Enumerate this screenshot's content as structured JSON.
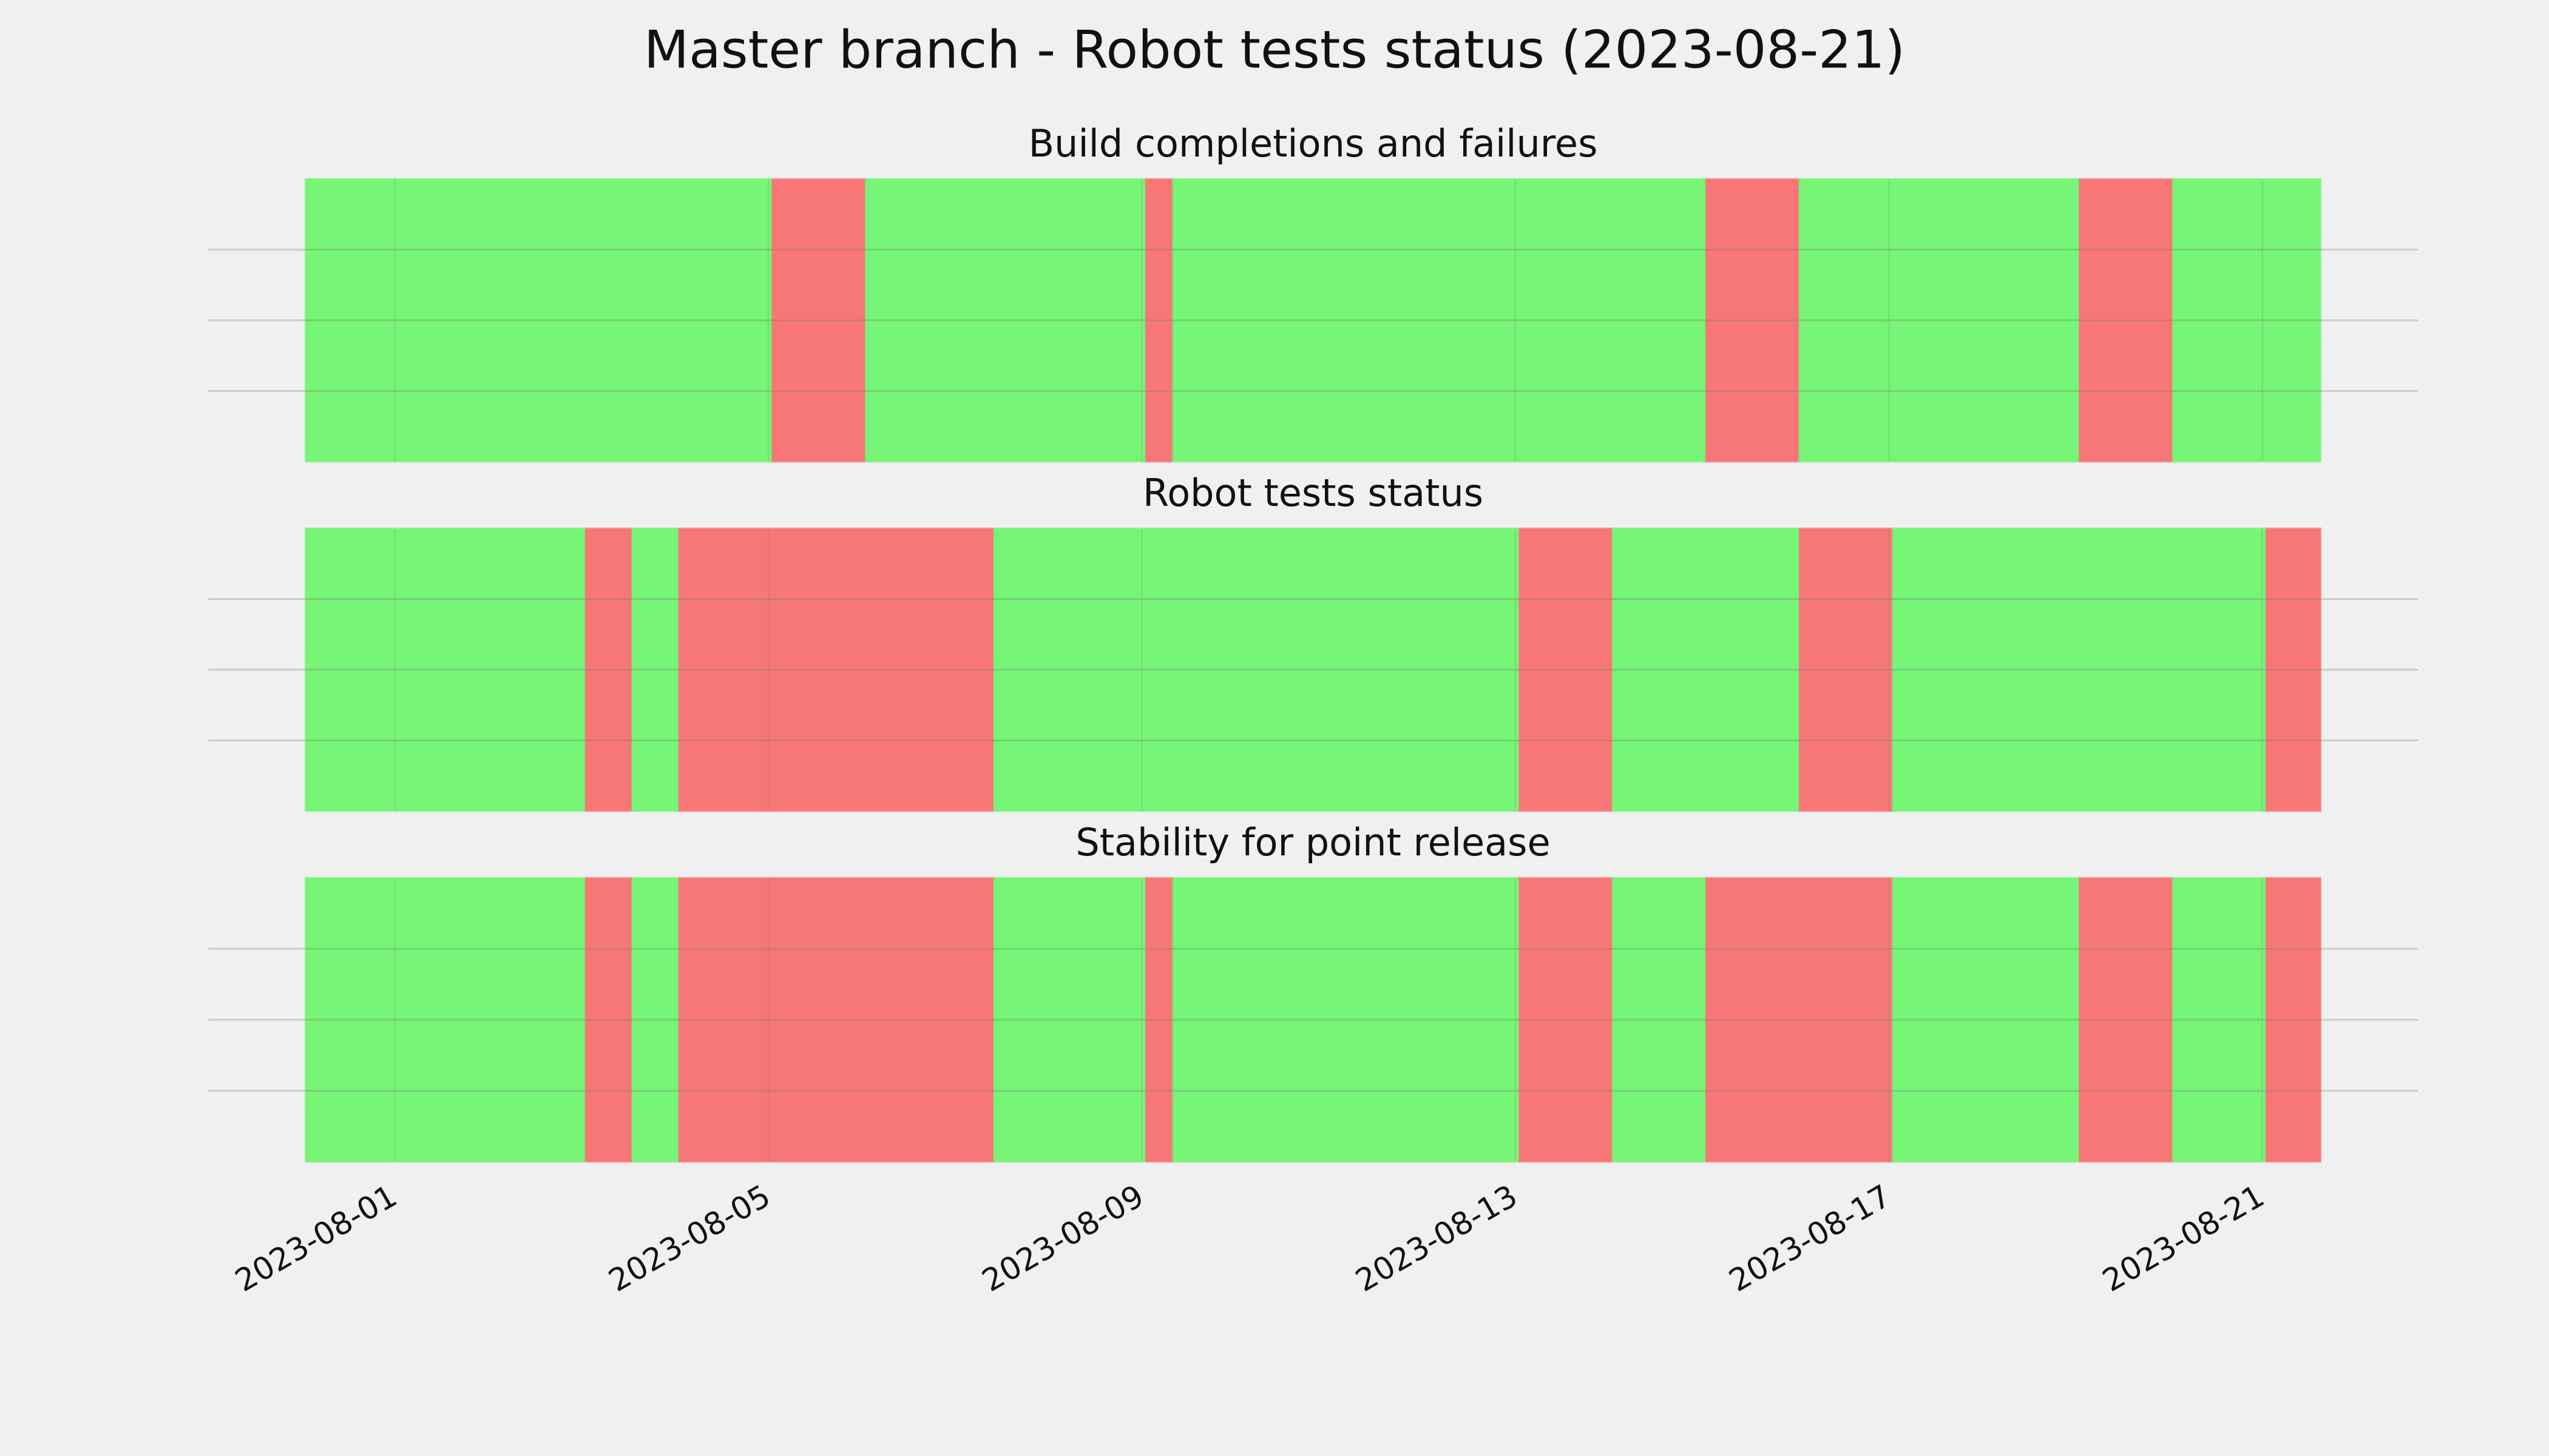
{
  "title": "Master branch - Robot tests status (2023-08-21)",
  "xlim": [
    "2023-07-30T00:00",
    "2023-08-22T16:00"
  ],
  "xticks": [
    "2023-08-01",
    "2023-08-05",
    "2023-08-09",
    "2023-08-13",
    "2023-08-17",
    "2023-08-21"
  ],
  "grid": true,
  "chart_data": [
    {
      "type": "timeline",
      "title": "Build completions and failures",
      "x_start": [
        "2023-07-31T01:00",
        "2023-08-05T01:00",
        "2023-08-06T01:00",
        "2023-08-09T01:00",
        "2023-08-09T08:00",
        "2023-08-15T01:00",
        "2023-08-16T01:00",
        "2023-08-19T01:00",
        "2023-08-20T01:00"
      ],
      "x_end": [
        "2023-08-05T01:00",
        "2023-08-06T01:00",
        "2023-08-09T01:00",
        "2023-08-09T08:00",
        "2023-08-15T01:00",
        "2023-08-16T01:00",
        "2023-08-19T01:00",
        "2023-08-20T01:00",
        "2023-08-21T15:00"
      ],
      "colors": [
        "#76f576",
        "#f77777",
        "#76f576",
        "#f77777",
        "#76f576",
        "#f77777",
        "#76f576",
        "#f77777",
        "#76f576"
      ]
    },
    {
      "type": "timeline",
      "title": "Robot tests status",
      "x_start": [
        "2023-07-31T01:00",
        "2023-08-03T01:00",
        "2023-08-03T13:00",
        "2023-08-04T01:00",
        "2023-08-07T10:00",
        "2023-08-13T01:00",
        "2023-08-14T01:00",
        "2023-08-16T01:00",
        "2023-08-17T01:00",
        "2023-08-21T01:00"
      ],
      "x_end": [
        "2023-08-03T01:00",
        "2023-08-03T13:00",
        "2023-08-04T01:00",
        "2023-08-07T10:00",
        "2023-08-13T01:00",
        "2023-08-14T01:00",
        "2023-08-16T01:00",
        "2023-08-17T01:00",
        "2023-08-21T01:00",
        "2023-08-21T15:00"
      ],
      "colors": [
        "#76f576",
        "#f77777",
        "#76f576",
        "#f77777",
        "#76f576",
        "#f77777",
        "#76f576",
        "#f77777",
        "#76f576",
        "#f77777"
      ]
    },
    {
      "type": "timeline",
      "title": "Stability for point release",
      "x_start": [
        "2023-07-31T01:00",
        "2023-08-03T01:00",
        "2023-08-03T13:00",
        "2023-08-04T01:00",
        "2023-08-07T10:00",
        "2023-08-09T01:00",
        "2023-08-09T08:00",
        "2023-08-13T01:00",
        "2023-08-14T01:00",
        "2023-08-15T01:00",
        "2023-08-17T01:00",
        "2023-08-19T01:00",
        "2023-08-20T01:00",
        "2023-08-21T01:00"
      ],
      "x_end": [
        "2023-08-03T01:00",
        "2023-08-03T13:00",
        "2023-08-04T01:00",
        "2023-08-07T10:00",
        "2023-08-09T01:00",
        "2023-08-09T08:00",
        "2023-08-13T01:00",
        "2023-08-14T01:00",
        "2023-08-15T01:00",
        "2023-08-17T01:00",
        "2023-08-19T01:00",
        "2023-08-20T01:00",
        "2023-08-21T01:00",
        "2023-08-21T15:00"
      ],
      "colors": [
        "#76f576",
        "#f77777",
        "#76f576",
        "#f77777",
        "#76f576",
        "#f77777",
        "#76f576",
        "#f77777",
        "#76f576",
        "#f77777",
        "#76f576",
        "#f77777",
        "#76f576",
        "#f77777"
      ]
    }
  ]
}
